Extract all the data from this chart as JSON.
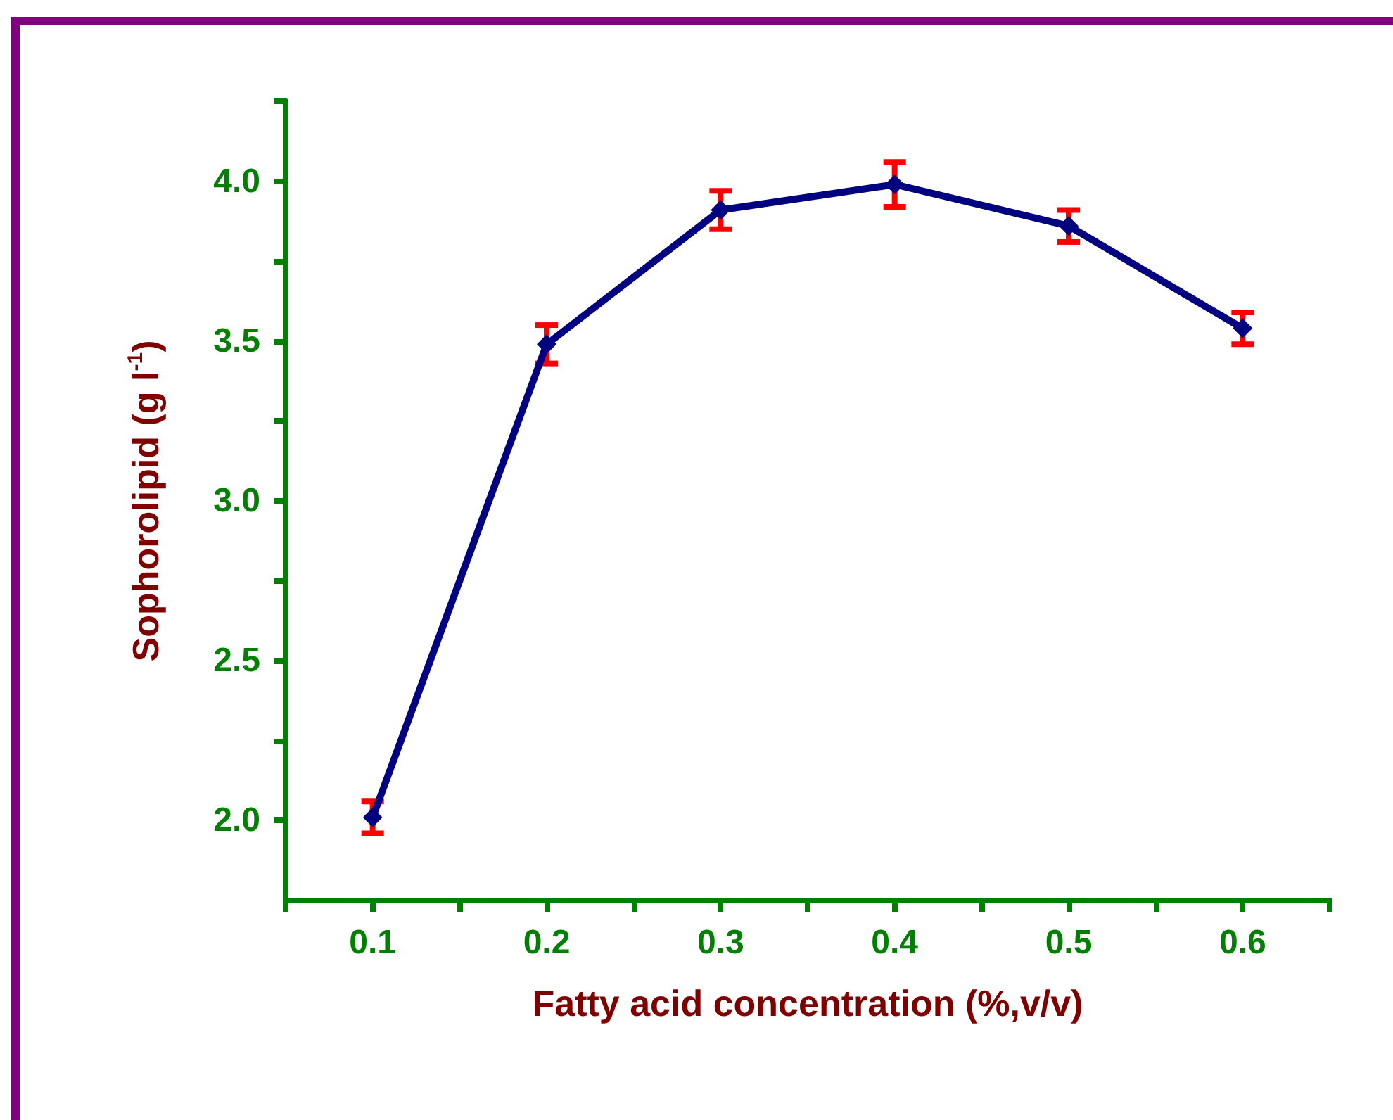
{
  "chart_data": {
    "type": "line",
    "xlabel": "Fatty acid concentration (%,v/v)",
    "ylabel": "Sophorolipid (g l$^{-1}$)",
    "x": [
      0.1,
      0.2,
      0.3,
      0.4,
      0.5,
      0.6
    ],
    "series": [
      {
        "color": "#000080",
        "values": [
          2.01,
          3.49,
          3.91,
          3.99,
          3.86,
          3.54
        ],
        "errors": [
          0.05,
          0.06,
          0.06,
          0.07,
          0.05,
          0.05
        ]
      }
    ],
    "xlim": [
      0.05,
      0.65
    ],
    "xticks": [
      {
        "value": 0.05,
        "label": null
      },
      0.1,
      {
        "value": 0.15,
        "label": null
      },
      0.2,
      {
        "value": 0.25,
        "label": null
      },
      0.3,
      {
        "value": 0.35,
        "label": null
      },
      0.4,
      {
        "value": 0.45,
        "label": null
      },
      0.5,
      {
        "value": 0.55,
        "label": null
      },
      0.6,
      {
        "value": 0.65,
        "label": null
      }
    ],
    "ylim": [
      1.75,
      4.25
    ],
    "yticks": [
      {
        "value": 2,
        "label": "2.0"
      },
      {
        "value": 2.25,
        "label": null
      },
      2.5,
      {
        "value": 2.75,
        "label": null
      },
      {
        "value": 3,
        "label": "3.0"
      },
      {
        "value": 3.25,
        "label": null
      },
      3.5,
      {
        "value": 3.75,
        "label": null
      },
      {
        "value": 4,
        "label": "4.0"
      },
      {
        "value": 4.25,
        "label": null
      }
    ],
    "grid": false,
    "marker": "diamond",
    "line_style": "solid"
  }
}
